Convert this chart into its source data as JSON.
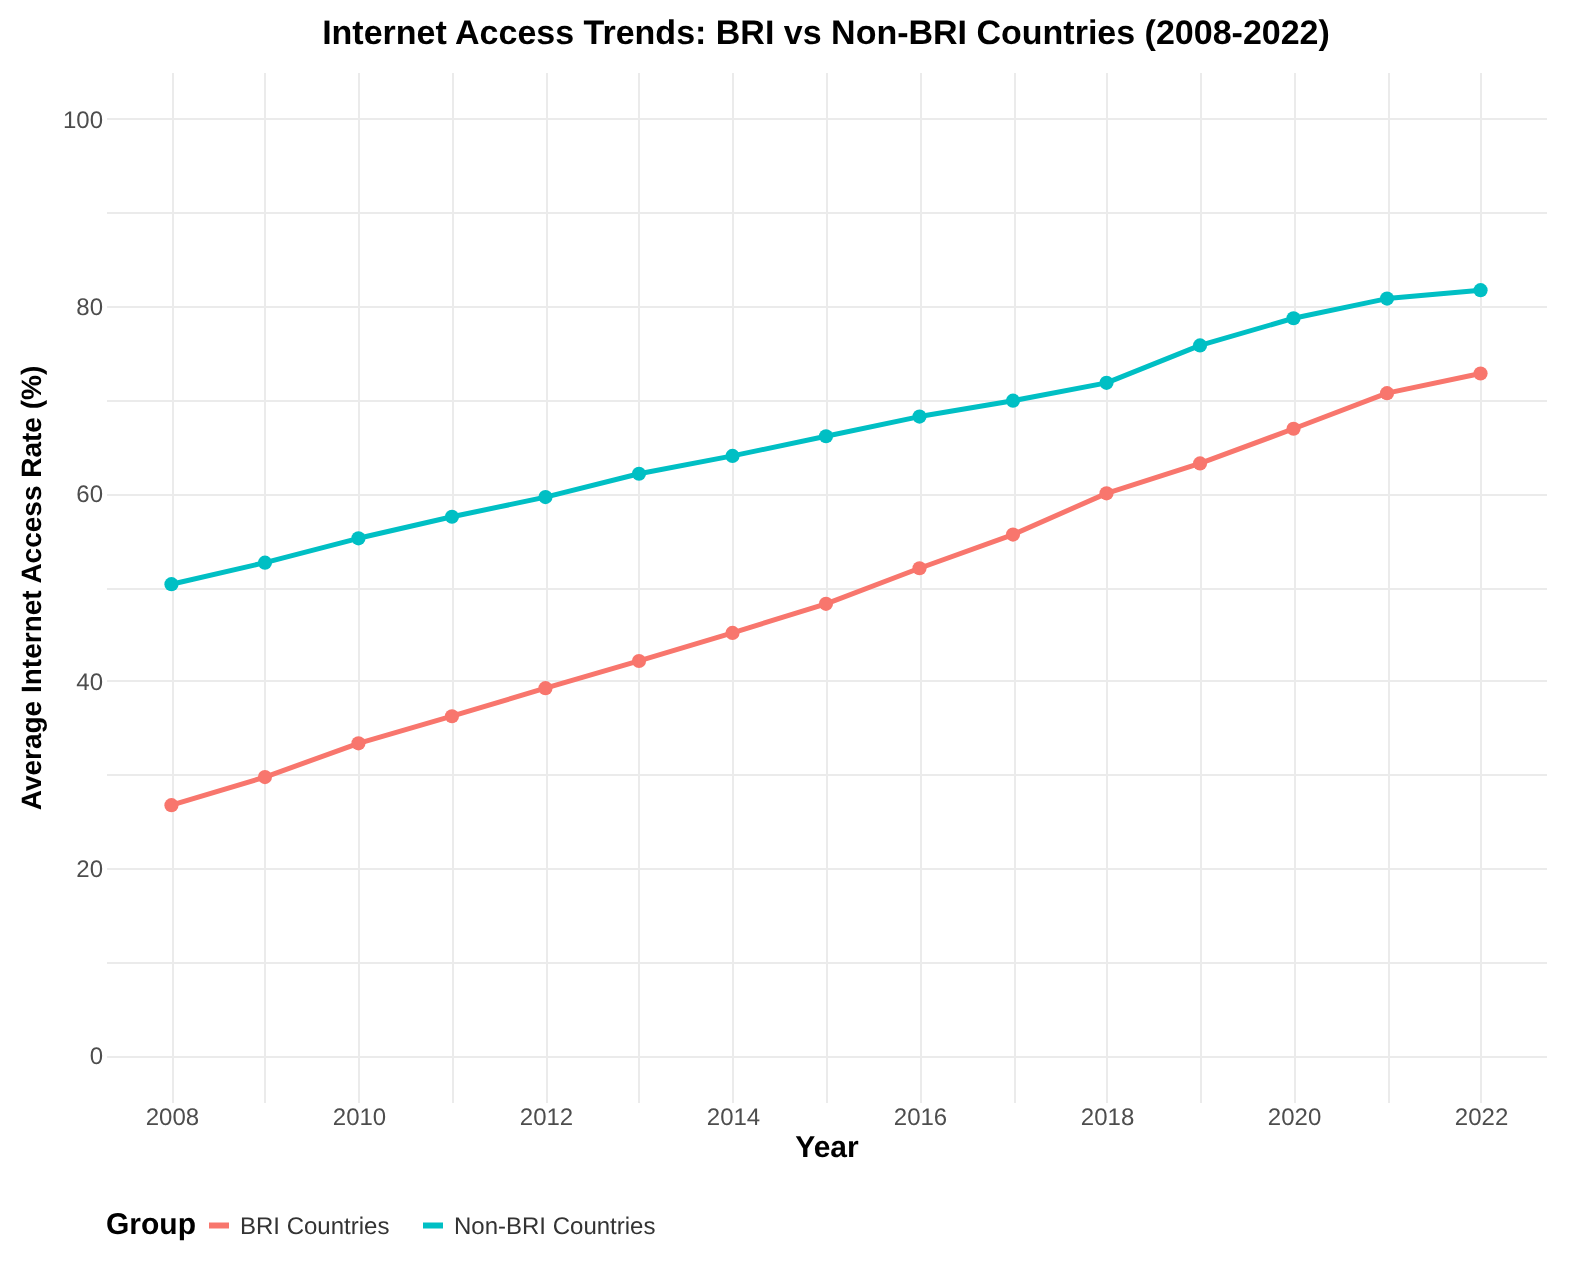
{
  "chart_data": {
    "type": "line",
    "title": "Internet Access Trends: BRI vs Non-BRI Countries (2008-2022)",
    "xlabel": "Year",
    "ylabel": "Average Internet Access Rate (%)",
    "legend_title": "Group",
    "x": [
      2008,
      2009,
      2010,
      2011,
      2012,
      2013,
      2014,
      2015,
      2016,
      2017,
      2018,
      2019,
      2020,
      2021,
      2022
    ],
    "series": [
      {
        "name": "BRI Countries",
        "color": "#f8766d",
        "values": [
          26.7,
          29.7,
          33.3,
          36.2,
          39.2,
          42.1,
          45.1,
          48.2,
          52.0,
          55.6,
          60.0,
          63.2,
          66.9,
          70.7,
          72.8
        ]
      },
      {
        "name": "Non-BRI Countries",
        "color": "#00bfc4",
        "values": [
          50.3,
          52.6,
          55.2,
          57.5,
          59.6,
          62.1,
          64.0,
          66.1,
          68.2,
          69.9,
          71.8,
          75.8,
          78.7,
          80.8,
          81.7
        ]
      }
    ],
    "xlim": [
      2007.3,
      2022.7
    ],
    "ylim": [
      -5,
      105
    ],
    "xticks": [
      2008,
      {
        "value": 2009,
        "label": null
      },
      2010,
      {
        "value": 2011,
        "label": null
      },
      2012,
      {
        "value": 2013,
        "label": null
      },
      2014,
      {
        "value": 2015,
        "label": null
      },
      2016,
      {
        "value": 2017,
        "label": null
      },
      2018,
      {
        "value": 2019,
        "label": null
      },
      2020,
      {
        "value": 2021,
        "label": null
      },
      2022
    ],
    "yticks": [
      0,
      {
        "value": 10,
        "label": null
      },
      20,
      {
        "value": 30,
        "label": null
      },
      40,
      {
        "value": 50,
        "label": null
      },
      60,
      {
        "value": 70,
        "label": null
      },
      80,
      {
        "value": 90,
        "label": null
      },
      100
    ],
    "grid": true,
    "legend": "bottom",
    "marker": "circle",
    "line_style": "solid"
  }
}
